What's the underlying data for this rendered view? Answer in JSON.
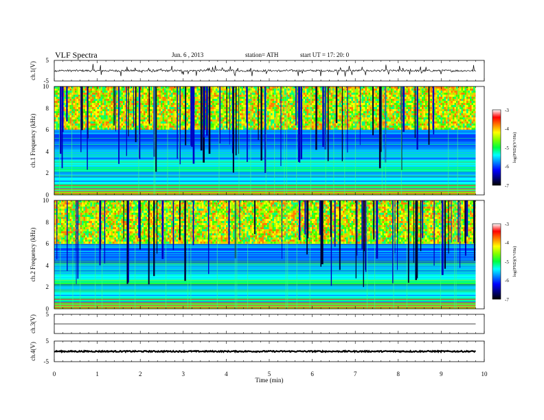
{
  "header": {
    "title": "VLF  Spectra",
    "date": "Jun. 6  , 2013",
    "station": "station= ATH",
    "start_ut": "start  UT  =    17: 20: 0"
  },
  "colorbar": {
    "label": "log(PSD)(V²/Hz)",
    "ticks": [
      "-3",
      "-4",
      "-5",
      "-6",
      "-7"
    ],
    "colors": [
      "#ffffff",
      "#ff0000",
      "#ff8000",
      "#ffff00",
      "#80ff00",
      "#00ff40",
      "#00ffff",
      "#0080ff",
      "#0000ff",
      "#000080",
      "#000000"
    ]
  },
  "chart_data": [
    {
      "type": "line",
      "panel": "ch1-waveform",
      "ylabel": "ch.1(V)",
      "ylim": [
        -5,
        5
      ],
      "y_ticks": [
        "5",
        "-5"
      ],
      "xlim": [
        0,
        10
      ],
      "data_end_min": 9.8,
      "baseline": 0,
      "noise_amplitude": 0.5,
      "spike_amplitude": 3,
      "color": "#000000"
    },
    {
      "type": "heatmap",
      "panel": "ch1-spectrogram",
      "ylabel": "ch.1 Frequency  (kHz)",
      "ylim": [
        0,
        10
      ],
      "y_ticks": [
        "10",
        "8",
        "6",
        "4",
        "2",
        "0"
      ],
      "xlim": [
        0,
        10
      ],
      "data_end_min": 9.8,
      "zlim": [
        -7,
        -3
      ],
      "zlabel": "log(PSD)(V²/Hz)"
    },
    {
      "type": "heatmap",
      "panel": "ch2-spectrogram",
      "ylabel": "ch.2 Frequency  (kHz)",
      "ylim": [
        0,
        10
      ],
      "y_ticks": [
        "10",
        "8",
        "6",
        "4",
        "2",
        "0"
      ],
      "xlim": [
        0,
        10
      ],
      "data_end_min": 9.8,
      "zlim": [
        -7,
        -3
      ],
      "zlabel": "log(PSD)(V²/Hz)"
    },
    {
      "type": "line",
      "panel": "ch3-waveform",
      "ylabel": "ch.3(V)",
      "ylim": [
        -5,
        5
      ],
      "y_ticks": [
        "5"
      ],
      "xlim": [
        0,
        10
      ],
      "data_end_min": 9.8,
      "baseline": 0,
      "noise_amplitude": 0,
      "spike_amplitude": 0,
      "color": "#000000"
    },
    {
      "type": "line",
      "panel": "ch4-waveform",
      "ylabel": "ch.4(V)",
      "ylim": [
        -5,
        5
      ],
      "y_ticks": [
        "5",
        "-5"
      ],
      "xlim": [
        0,
        10
      ],
      "data_end_min": 9.8,
      "baseline": 0,
      "noise_amplitude": 0.3,
      "spike_amplitude": 0,
      "color": "#000000"
    }
  ],
  "xaxis": {
    "label": "Time  (min)",
    "ticks": [
      "0",
      "1",
      "2",
      "3",
      "4",
      "5",
      "6",
      "7",
      "8",
      "9",
      "10"
    ]
  }
}
